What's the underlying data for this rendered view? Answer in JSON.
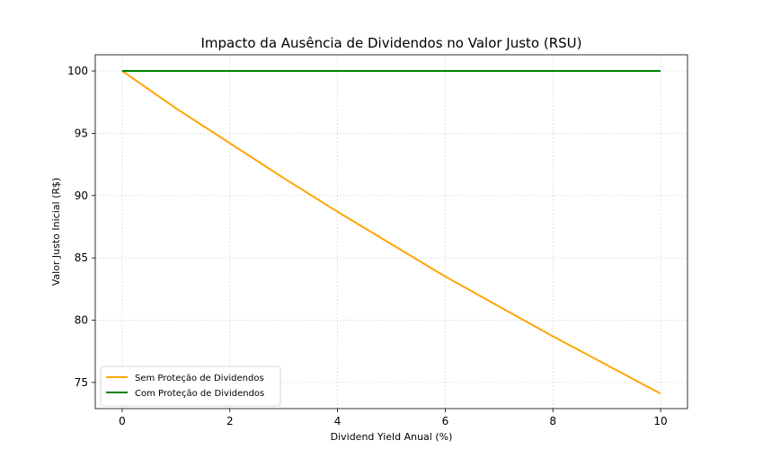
{
  "chart_data": {
    "type": "line",
    "title": "Impacto da Ausência de Dividendos no Valor Justo (RSU)",
    "xlabel": "Dividend Yield Anual (%)",
    "ylabel": "Valor Justo Inicial (R$)",
    "xlim": [
      -0.5,
      10.5
    ],
    "ylim": [
      72.9,
      101.3
    ],
    "xticks": [
      0,
      2,
      4,
      6,
      8,
      10
    ],
    "yticks": [
      75,
      80,
      85,
      90,
      95,
      100
    ],
    "grid": true,
    "legend_position": "lower-left",
    "x": [
      0,
      1,
      2,
      3,
      4,
      5,
      6,
      7,
      8,
      9,
      10
    ],
    "series": [
      {
        "name": "Sem Proteção de Dividendos",
        "color": "#ffa500",
        "values": [
          100,
          97.0,
          94.2,
          91.4,
          88.7,
          86.1,
          83.5,
          81.1,
          78.7,
          76.4,
          74.1
        ]
      },
      {
        "name": "Com Proteção de Dividendos",
        "color": "#008000",
        "values": [
          100,
          100,
          100,
          100,
          100,
          100,
          100,
          100,
          100,
          100,
          100
        ]
      }
    ]
  }
}
